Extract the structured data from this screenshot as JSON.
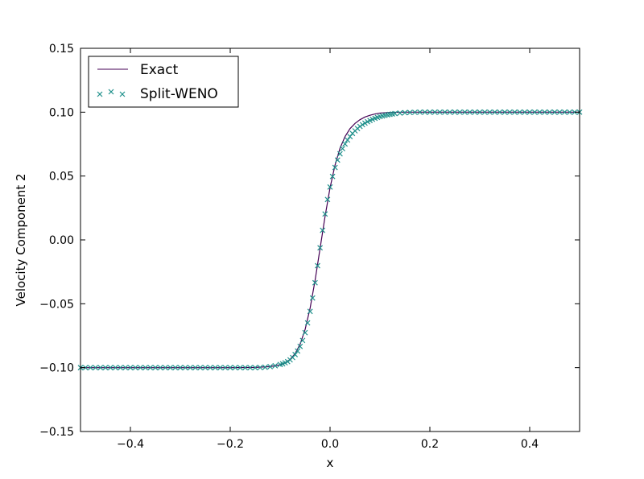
{
  "chart_data": {
    "type": "line",
    "title": "",
    "xlabel": "x",
    "ylabel": "Velocity Component 2",
    "xlim": [
      -0.5,
      0.5
    ],
    "ylim": [
      -0.15,
      0.15
    ],
    "xticks": [
      -0.4,
      -0.2,
      0.0,
      0.2,
      0.4
    ],
    "xtick_labels": [
      "−0.4",
      "−0.2",
      "0.0",
      "0.2",
      "0.4"
    ],
    "yticks": [
      -0.15,
      -0.1,
      -0.05,
      0.0,
      0.05,
      0.1,
      0.15
    ],
    "ytick_labels": [
      "−0.15",
      "−0.10",
      "−0.05",
      "0.00",
      "0.05",
      "0.10",
      "0.15"
    ],
    "grid": false,
    "legend_position": "top-left",
    "series": [
      {
        "name": "Exact",
        "style": "line",
        "color": "#440154",
        "x": [
          -0.5,
          -0.2,
          -0.15,
          -0.12,
          -0.1,
          -0.09,
          -0.08,
          -0.07,
          -0.06,
          -0.05,
          -0.04,
          -0.03,
          -0.02,
          -0.01,
          0.0,
          0.01,
          0.02,
          0.03,
          0.04,
          0.05,
          0.06,
          0.07,
          0.08,
          0.09,
          0.1,
          0.12,
          0.15,
          0.2,
          0.5
        ],
        "y": [
          -0.1,
          -0.1,
          -0.0998,
          -0.0992,
          -0.0978,
          -0.0962,
          -0.0935,
          -0.089,
          -0.0817,
          -0.0702,
          -0.0535,
          -0.0317,
          -0.0067,
          0.0184,
          0.0408,
          0.0586,
          0.0718,
          0.0809,
          0.0871,
          0.0912,
          0.0941,
          0.0962,
          0.0976,
          0.0986,
          0.0993,
          0.0998,
          0.1,
          0.1,
          0.1
        ]
      },
      {
        "name": "Split-WENO",
        "style": "markers",
        "marker": "x",
        "color": "#21918c",
        "x": [
          -0.5,
          -0.49,
          -0.48,
          -0.47,
          -0.46,
          -0.45,
          -0.44,
          -0.43,
          -0.42,
          -0.41,
          -0.4,
          -0.39,
          -0.38,
          -0.37,
          -0.36,
          -0.35,
          -0.34,
          -0.33,
          -0.32,
          -0.31,
          -0.3,
          -0.29,
          -0.28,
          -0.27,
          -0.26,
          -0.25,
          -0.24,
          -0.23,
          -0.22,
          -0.21,
          -0.2,
          -0.19,
          -0.18,
          -0.17,
          -0.16,
          -0.15,
          -0.14,
          -0.13,
          -0.12,
          -0.11,
          -0.1,
          -0.095,
          -0.09,
          -0.085,
          -0.08,
          -0.075,
          -0.07,
          -0.065,
          -0.06,
          -0.055,
          -0.05,
          -0.045,
          -0.04,
          -0.035,
          -0.03,
          -0.025,
          -0.02,
          -0.015,
          -0.01,
          -0.005,
          0.0,
          0.005,
          0.01,
          0.015,
          0.02,
          0.025,
          0.03,
          0.035,
          0.04,
          0.045,
          0.05,
          0.055,
          0.06,
          0.065,
          0.07,
          0.075,
          0.08,
          0.085,
          0.09,
          0.095,
          0.1,
          0.105,
          0.11,
          0.115,
          0.12,
          0.125,
          0.13,
          0.14,
          0.15,
          0.16,
          0.17,
          0.18,
          0.19,
          0.2,
          0.21,
          0.22,
          0.23,
          0.24,
          0.25,
          0.26,
          0.27,
          0.28,
          0.29,
          0.3,
          0.31,
          0.32,
          0.33,
          0.34,
          0.35,
          0.36,
          0.37,
          0.38,
          0.39,
          0.4,
          0.41,
          0.42,
          0.43,
          0.44,
          0.45,
          0.46,
          0.47,
          0.48,
          0.49,
          0.5
        ],
        "y": [
          -0.1,
          -0.1,
          -0.1,
          -0.1,
          -0.1,
          -0.1,
          -0.1,
          -0.1,
          -0.1,
          -0.1,
          -0.1,
          -0.1,
          -0.1,
          -0.1,
          -0.1,
          -0.1,
          -0.1,
          -0.1,
          -0.1,
          -0.1,
          -0.1,
          -0.1,
          -0.1,
          -0.1,
          -0.1,
          -0.1,
          -0.1,
          -0.1,
          -0.1,
          -0.1,
          -0.1,
          -0.1,
          -0.1,
          -0.1,
          -0.1,
          -0.1,
          -0.0999,
          -0.0997,
          -0.0992,
          -0.0985,
          -0.0976,
          -0.097,
          -0.0962,
          -0.0953,
          -0.0939,
          -0.0921,
          -0.0898,
          -0.087,
          -0.0834,
          -0.0787,
          -0.0726,
          -0.065,
          -0.056,
          -0.0455,
          -0.0335,
          -0.0202,
          -0.0062,
          0.0075,
          0.0203,
          0.0316,
          0.0414,
          0.0497,
          0.0567,
          0.0625,
          0.0674,
          0.0715,
          0.0751,
          0.0782,
          0.0809,
          0.0833,
          0.0854,
          0.0872,
          0.0888,
          0.0902,
          0.0914,
          0.0925,
          0.0935,
          0.0944,
          0.0952,
          0.0959,
          0.0965,
          0.097,
          0.0975,
          0.0979,
          0.0983,
          0.0986,
          0.0989,
          0.0993,
          0.0996,
          0.0998,
          0.0999,
          0.1,
          0.1,
          0.1,
          0.1,
          0.1,
          0.1,
          0.1,
          0.1,
          0.1,
          0.1,
          0.1,
          0.1,
          0.1,
          0.1,
          0.1,
          0.1,
          0.1,
          0.1,
          0.1,
          0.1,
          0.1,
          0.1,
          0.1,
          0.1,
          0.1,
          0.1,
          0.1,
          0.1,
          0.1,
          0.1,
          0.1,
          0.1,
          0.1
        ]
      }
    ]
  }
}
